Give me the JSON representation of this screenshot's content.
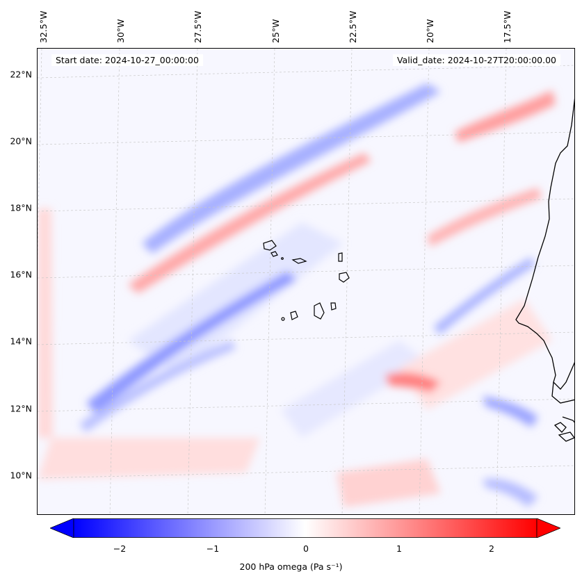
{
  "header": {
    "start_date": "Start date: 2024-10-27_00:00:00",
    "valid_date": "Valid_date: 2024-10-27T20:00:00.00"
  },
  "axes": {
    "lon_labels": [
      "32.5°W",
      "30°W",
      "27.5°W",
      "25°W",
      "22.5°W",
      "20°W",
      "17.5°W"
    ],
    "lat_labels": [
      "22°N",
      "20°N",
      "18°N",
      "16°N",
      "14°N",
      "12°N",
      "10°N"
    ],
    "grid": "dashed light gray"
  },
  "colorbar": {
    "label": "200 hPa omega (Pa s⁻¹)",
    "ticks": [
      "−2",
      "−1",
      "0",
      "1",
      "2"
    ],
    "min": -2.5,
    "max": 2.5,
    "extend": "both",
    "colormap": "bwr",
    "low_color": "#0000ff",
    "mid_color": "#ffffff",
    "high_color": "#ff0000"
  },
  "map": {
    "field": "200 hPa omega",
    "features": [
      "west-africa-coastline",
      "cape-verde-islands"
    ]
  }
}
